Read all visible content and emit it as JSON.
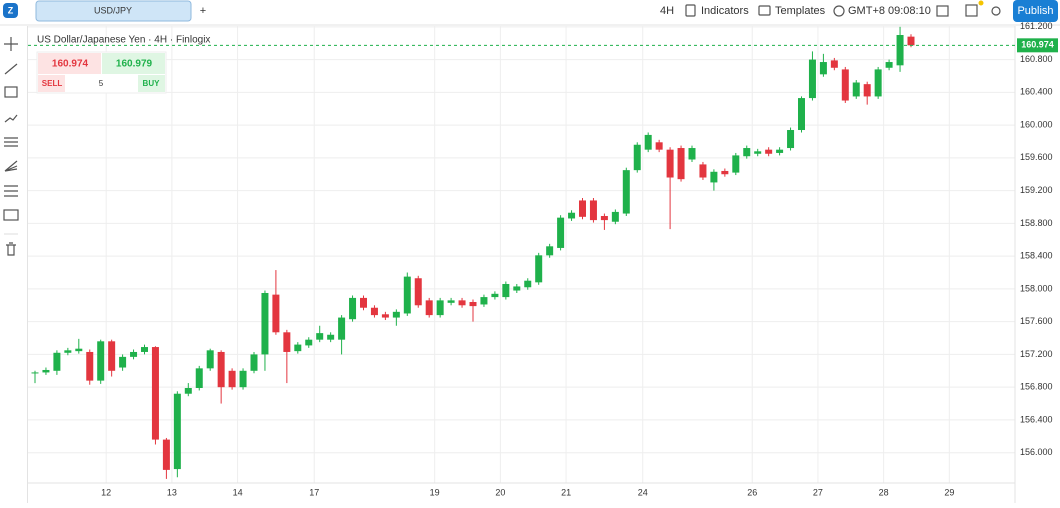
{
  "header": {
    "symbol": "USD/JPY",
    "add": "+",
    "interval": "4H",
    "indicators": "Indicators",
    "templates": "Templates",
    "timezone": "GMT+8",
    "clock": "09:08:10",
    "publish": "Publish"
  },
  "trade_panel": {
    "sell_price": "160.974",
    "buy_price": "160.979",
    "sell": "SELL",
    "quantity": "5",
    "buy": "BUY"
  },
  "chart_data": {
    "type": "candlestick",
    "title": "US Dollar/Japanese Yen · 4H · Finlogix",
    "categories": [
      null,
      null,
      null,
      null,
      null,
      null,
      null,
      "12",
      null,
      null,
      null,
      null,
      null,
      "13",
      null,
      null,
      null,
      null,
      null,
      "14",
      null,
      null,
      null,
      null,
      null,
      null,
      "17",
      null,
      null,
      null,
      null,
      null,
      null,
      null,
      null,
      null,
      null,
      "19",
      null,
      null,
      null,
      null,
      null,
      "20",
      null,
      null,
      null,
      null,
      null,
      "21",
      null,
      null,
      null,
      null,
      null,
      null,
      "24",
      null,
      null,
      null,
      null,
      null,
      null,
      null,
      null,
      null,
      "26",
      null,
      null,
      null,
      null,
      null,
      "27",
      null,
      null,
      null,
      null,
      null,
      "28",
      null,
      null,
      null,
      null,
      null,
      "29"
    ],
    "open": [
      156.97,
      156.98,
      157.0,
      157.22,
      157.24,
      157.23,
      156.88,
      157.36,
      157.04,
      157.17,
      157.23,
      157.29,
      156.16,
      155.8,
      156.72,
      156.79,
      157.03,
      157.23,
      157.0,
      156.8,
      157.0,
      157.2,
      157.93,
      157.47,
      157.24,
      157.31,
      157.38,
      157.38,
      157.38,
      157.63,
      157.89,
      157.77,
      157.69,
      157.65,
      157.7,
      158.13,
      157.86,
      157.68,
      157.83,
      157.86,
      157.84,
      157.81,
      157.9,
      157.9,
      157.98,
      158.02,
      158.08,
      158.41,
      158.5,
      158.86,
      159.08,
      159.08,
      158.89,
      158.82,
      158.92,
      159.45,
      159.7,
      159.79,
      159.7,
      159.72,
      159.58,
      159.52,
      159.3,
      159.44,
      159.42,
      159.62,
      159.65,
      159.7,
      159.66,
      159.72,
      159.94,
      160.33,
      160.62,
      160.79,
      160.68,
      160.35,
      160.5,
      160.35,
      160.7,
      160.73,
      161.08,
      null,
      null,
      null,
      null
    ],
    "high": [
      157.0,
      157.04,
      157.25,
      157.28,
      157.39,
      157.26,
      157.38,
      157.38,
      157.2,
      157.26,
      157.32,
      157.3,
      156.18,
      156.75,
      156.85,
      157.06,
      157.27,
      157.25,
      157.03,
      157.03,
      157.23,
      157.98,
      158.23,
      157.5,
      157.35,
      157.41,
      157.55,
      157.47,
      157.68,
      157.92,
      157.92,
      157.8,
      157.72,
      157.75,
      158.2,
      158.16,
      157.89,
      157.89,
      157.89,
      157.89,
      157.87,
      157.93,
      157.97,
      158.09,
      158.06,
      158.13,
      158.44,
      158.55,
      158.9,
      158.96,
      159.11,
      159.11,
      158.92,
      158.97,
      159.48,
      159.79,
      159.91,
      159.82,
      159.73,
      159.75,
      159.75,
      159.55,
      159.46,
      159.47,
      159.66,
      159.75,
      159.71,
      159.73,
      159.73,
      159.97,
      160.35,
      160.9,
      160.87,
      160.82,
      160.71,
      160.55,
      160.53,
      160.71,
      160.8,
      161.2,
      161.11,
      null,
      null,
      null,
      null
    ],
    "low": [
      156.85,
      156.95,
      156.95,
      157.19,
      157.21,
      156.83,
      156.84,
      156.93,
      157.0,
      157.14,
      157.2,
      156.1,
      155.68,
      155.7,
      156.69,
      156.76,
      157.0,
      156.6,
      156.77,
      156.77,
      156.97,
      157.0,
      157.44,
      156.85,
      157.21,
      157.28,
      157.35,
      157.35,
      157.2,
      157.6,
      157.74,
      157.65,
      157.62,
      157.55,
      157.67,
      157.77,
      157.65,
      157.65,
      157.8,
      157.77,
      157.6,
      157.78,
      157.87,
      157.87,
      157.95,
      157.99,
      158.05,
      158.38,
      158.47,
      158.83,
      158.85,
      158.81,
      158.72,
      158.79,
      158.89,
      159.42,
      159.67,
      159.67,
      158.73,
      159.31,
      159.55,
      159.33,
      159.2,
      159.37,
      159.39,
      159.59,
      159.62,
      159.62,
      159.63,
      159.69,
      159.91,
      160.3,
      160.59,
      160.67,
      160.27,
      160.32,
      160.25,
      160.32,
      160.67,
      160.65,
      160.95,
      null,
      null,
      null,
      null
    ],
    "close": [
      156.98,
      157.01,
      157.22,
      157.25,
      157.27,
      156.88,
      157.36,
      157.0,
      157.17,
      157.23,
      157.29,
      156.16,
      155.79,
      156.72,
      156.79,
      157.03,
      157.25,
      156.8,
      156.8,
      157.0,
      157.2,
      157.95,
      157.47,
      157.23,
      157.32,
      157.38,
      157.46,
      157.44,
      157.65,
      157.89,
      157.77,
      157.68,
      157.65,
      157.72,
      158.15,
      157.8,
      157.68,
      157.86,
      157.86,
      157.8,
      157.79,
      157.9,
      157.94,
      158.06,
      158.03,
      158.1,
      158.41,
      158.52,
      158.87,
      158.93,
      158.88,
      158.84,
      158.84,
      158.94,
      159.45,
      159.76,
      159.88,
      159.7,
      159.36,
      159.34,
      159.72,
      159.36,
      159.43,
      159.4,
      159.63,
      159.72,
      159.68,
      159.65,
      159.7,
      159.94,
      160.33,
      160.8,
      160.77,
      160.7,
      160.3,
      160.52,
      160.35,
      160.68,
      160.77,
      161.1,
      160.974,
      null,
      null,
      null,
      null
    ],
    "up_color": "#1fb14b",
    "down_color": "#e3363f",
    "ylim": [
      155.63,
      161.21
    ],
    "yticks": [
      {
        "value": 156.0,
        "label": "156.000"
      },
      {
        "value": 156.4,
        "label": "156.400"
      },
      {
        "value": 156.8,
        "label": "156.800"
      },
      {
        "value": 157.2,
        "label": "157.200"
      },
      {
        "value": 157.6,
        "label": "157.600"
      },
      {
        "value": 158.0,
        "label": "158.000"
      },
      {
        "value": 158.4,
        "label": "158.400"
      },
      {
        "value": 158.8,
        "label": "158.800"
      },
      {
        "value": 159.2,
        "label": "159.200"
      },
      {
        "value": 159.6,
        "label": "159.600"
      },
      {
        "value": 160.0,
        "label": "160.000"
      },
      {
        "value": 160.4,
        "label": "160.400"
      },
      {
        "value": 160.8,
        "label": "160.800"
      },
      {
        "value": 161.2,
        "label": "161.200"
      }
    ],
    "last_price": 160.974,
    "grid": true
  }
}
